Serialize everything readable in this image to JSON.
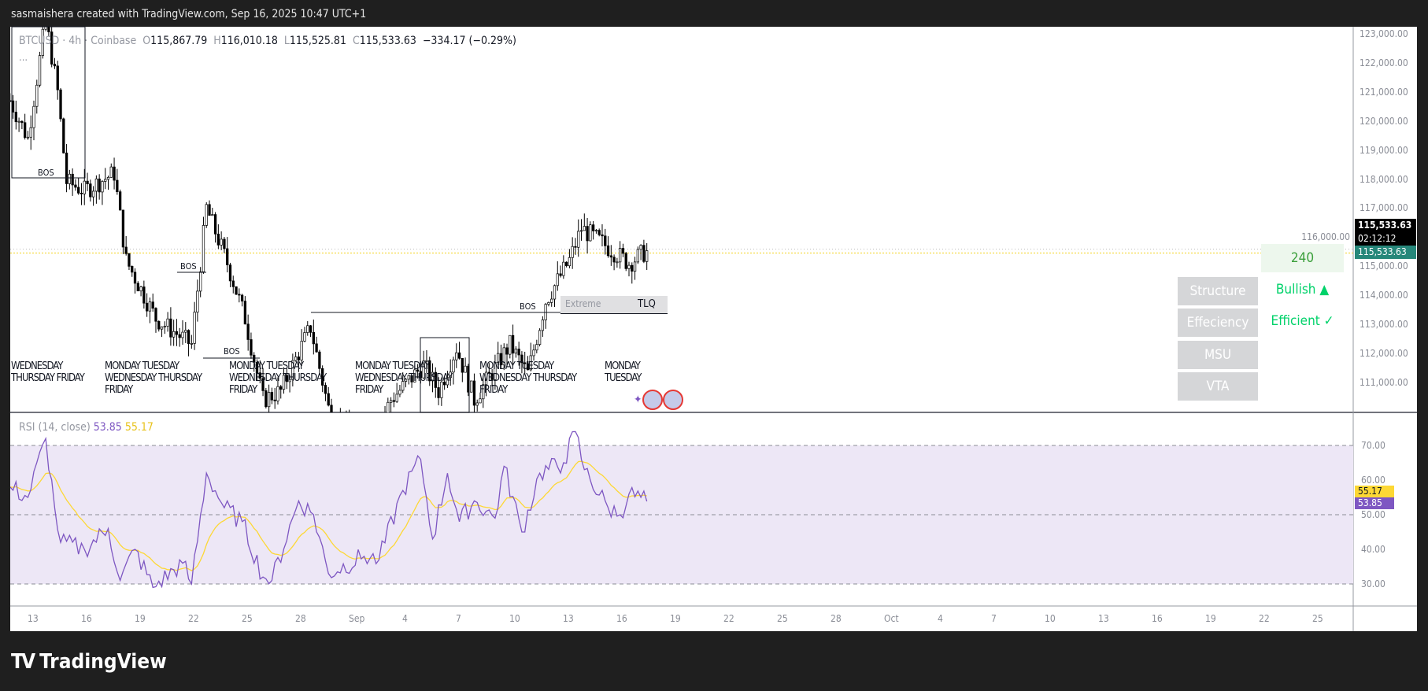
{
  "header": {
    "caption": "sasmaishera created with TradingView.com, Sep 16, 2025 10:47 UTC+1"
  },
  "legend": {
    "symbol": "BTCUSD · 4h · Coinbase",
    "o_label": "O",
    "o": "115,867.79",
    "h_label": "H",
    "h": "116,010.18",
    "l_label": "L",
    "l": "115,525.81",
    "c_label": "C",
    "c": "115,533.63",
    "change": "−334.17 (−0.29%)",
    "more": "..."
  },
  "rsi_legend": {
    "name": "RSI (14, close)",
    "rsi": "53.85",
    "ma": "55.17"
  },
  "price_axis": {
    "labels": [
      "123,000.00",
      "122,000.00",
      "121,000.00",
      "120,000.00",
      "119,000.00",
      "118,000.00",
      "117,000.00",
      "116,000.00",
      "115,000.00",
      "114,000.00",
      "113,000.00",
      "112,000.00",
      "111,000.00"
    ],
    "last_price": "115,533.63",
    "countdown": "02:12:12",
    "last_price_2": "115,533.63"
  },
  "rsi_axis": {
    "labels": [
      "70.00",
      "60.00",
      "50.00",
      "40.00",
      "30.00"
    ],
    "ma_tag": "55.17",
    "rsi_tag": "53.85"
  },
  "time_axis": {
    "labels": [
      "13",
      "16",
      "19",
      "22",
      "25",
      "28",
      "Sep",
      "4",
      "7",
      "10",
      "13",
      "16",
      "19",
      "22",
      "25",
      "28",
      "Oct",
      "4",
      "7",
      "10",
      "13",
      "16",
      "19",
      "22",
      "25"
    ]
  },
  "annotations": {
    "bos": [
      "BOS",
      "BOS",
      "BOS",
      "BOS"
    ],
    "extreme": "Extreme",
    "tlq": "TLQ",
    "day_labels": [
      "WEDNESDAY THURSDAY FRIDAY",
      "MONDAY TUESDAY WEDNESDAY THURSDAY FRIDAY",
      "MONDAY TUESDAY WEDNESDAY THURSDAY FRIDAY",
      "MONDAY TUESDAY WEDNESDAY THURSDAY FRIDAY",
      "MONDAY TUESDAY WEDNESDAY THURSDAY FRIDAY",
      "MONDAY TUESDAY"
    ]
  },
  "panel": {
    "timeframe": "240",
    "rows": [
      {
        "label": "Structure",
        "value": "Bullish ▲"
      },
      {
        "label": "Effeciency",
        "value": "Efficient ✓"
      },
      {
        "label": "MSU",
        "value": ""
      },
      {
        "label": "VTA",
        "value": ""
      }
    ]
  },
  "brand": {
    "name": "TradingView"
  },
  "colors": {
    "rsi": "#7e57c2",
    "rsi_ma": "#fdd835",
    "rsi_band": "#ede7f6",
    "last_price_tag": "#26877a",
    "status_green": "#00d26a",
    "up_candle": "#ffffff",
    "down_candle": "#000000"
  },
  "chart_data": [
    {
      "type": "candlestick",
      "title": "BTCUSD · 4h · Coinbase",
      "ylim": [
        110000,
        123000
      ],
      "grid": false,
      "price_path": [
        [
          "2025-08-11T16:00",
          120700
        ],
        [
          "2025-08-12T16:00",
          119400
        ],
        [
          "2025-08-13T16:00",
          123500
        ],
        [
          "2025-08-14T08:00",
          121000
        ],
        [
          "2025-08-14T20:00",
          117900
        ],
        [
          "2025-08-15T20:00",
          117600
        ],
        [
          "2025-08-17T12:00",
          118200
        ],
        [
          "2025-08-18T04:00",
          115200
        ],
        [
          "2025-08-19T20:00",
          113200
        ],
        [
          "2025-08-21T20:00",
          112300
        ],
        [
          "2025-08-22T16:00",
          117000
        ],
        [
          "2025-08-23T20:00",
          115100
        ],
        [
          "2025-08-24T20:00",
          113200
        ],
        [
          "2025-08-25T20:00",
          110400
        ],
        [
          "2025-08-26T20:00",
          110700
        ],
        [
          "2025-08-28T12:00",
          112900
        ],
        [
          "2025-08-29T12:00",
          110100
        ],
        [
          "2025-08-31T12:00",
          108500
        ],
        [
          "2025-09-02T00:00",
          110400
        ],
        [
          "2025-09-03T20:00",
          111600
        ],
        [
          "2025-09-04T16:00",
          110700
        ],
        [
          "2025-09-05T16:00",
          112200
        ],
        [
          "2025-09-06T16:00",
          110400
        ],
        [
          "2025-09-08T16:00",
          112300
        ],
        [
          "2025-09-09T16:00",
          111300
        ],
        [
          "2025-09-10T16:00",
          113800
        ],
        [
          "2025-09-12T00:00",
          115200
        ],
        [
          "2025-09-12T16:00",
          116300
        ],
        [
          "2025-09-13T20:00",
          115800
        ],
        [
          "2025-09-15T08:00",
          115100
        ],
        [
          "2025-09-16T08:00",
          115533.63
        ]
      ],
      "last_close": 115533.63
    },
    {
      "type": "line",
      "title": "RSI (14, close)",
      "ylim": [
        25,
        75
      ],
      "bands": [
        30,
        50,
        70
      ],
      "series": [
        {
          "name": "RSI",
          "values": [
            [
              "2025-08-11T16:00",
              58
            ],
            [
              "2025-08-12T16:00",
              55
            ],
            [
              "2025-08-13T16:00",
              72
            ],
            [
              "2025-08-14T04:00",
              52
            ],
            [
              "2025-08-14T12:00",
              42
            ],
            [
              "2025-08-15T20:00",
              40
            ],
            [
              "2025-08-17T04:00",
              46
            ],
            [
              "2025-08-17T20:00",
              31
            ],
            [
              "2025-08-18T16:00",
              40
            ],
            [
              "2025-08-19T16:00",
              29
            ],
            [
              "2025-08-21T08:00",
              36
            ],
            [
              "2025-08-21T20:00",
              30
            ],
            [
              "2025-08-22T16:00",
              62
            ],
            [
              "2025-08-23T16:00",
              52
            ],
            [
              "2025-08-24T16:00",
              48
            ],
            [
              "2025-08-25T20:00",
              32
            ],
            [
              "2025-08-26T08:00",
              31
            ],
            [
              "2025-08-27T20:00",
              54
            ],
            [
              "2025-08-28T16:00",
              50
            ],
            [
              "2025-08-29T12:00",
              33
            ],
            [
              "2025-08-31T12:00",
              38
            ],
            [
              "2025-09-01T08:00",
              37
            ],
            [
              "2025-09-02T16:00",
              57
            ],
            [
              "2025-09-03T16:00",
              66
            ],
            [
              "2025-09-04T08:00",
              43
            ],
            [
              "2025-09-05T04:00",
              62
            ],
            [
              "2025-09-05T20:00",
              48
            ],
            [
              "2025-09-06T16:00",
              54
            ],
            [
              "2025-09-07T20:00",
              49
            ],
            [
              "2025-09-08T08:00",
              64
            ],
            [
              "2025-09-09T08:00",
              45
            ],
            [
              "2025-09-10T08:00",
              62
            ],
            [
              "2025-09-11T16:00",
              65
            ],
            [
              "2025-09-12T08:00",
              74
            ],
            [
              "2025-09-12T20:00",
              63
            ],
            [
              "2025-09-14T04:00",
              52
            ],
            [
              "2025-09-14T20:00",
              50
            ],
            [
              "2025-09-15T08:00",
              56
            ],
            [
              "2025-09-16T08:00",
              53.85
            ]
          ]
        },
        {
          "name": "RSI-based MA",
          "last": 55.17
        }
      ]
    }
  ]
}
